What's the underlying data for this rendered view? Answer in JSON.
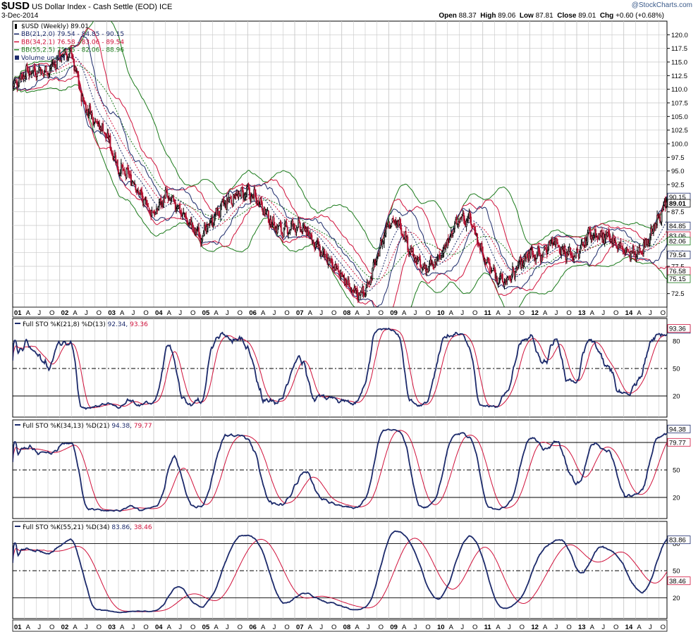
{
  "header": {
    "symbol": "$USD",
    "name": "US Dollar Index - Cash Settle (EOD)",
    "exchange": "ICE",
    "date": "3-Dec-2014",
    "brand": "@StockCharts.com",
    "quote": {
      "open_label": "Open",
      "open": "88.37",
      "high_label": "High",
      "high": "89.06",
      "low_label": "Low",
      "low": "87.81",
      "close_label": "Close",
      "close": "89.01",
      "chg_label": "Chg",
      "chg": "+0.60 (+0.68%)"
    }
  },
  "colors": {
    "background": "#ffffff",
    "grid": "#c8c8c8",
    "navy": "#1c2a6b",
    "red": "#d0103a",
    "green": "#1a7a1a",
    "candle_up": "#000000",
    "candle_down": "#b01030",
    "tag_bg": "#ffffff"
  },
  "chart_data": [
    {
      "type": "candlestick",
      "panel": "price",
      "legend": [
        {
          "text": "$USD (Weekly) 89.01",
          "color": "#000000"
        },
        {
          "text": "BB(21,2.0) 79.54 - 84.85 - 90.15",
          "color": "#1c2a6b"
        },
        {
          "text": "BB(34,2.1) 76.58 - 83.06 - 89.54",
          "color": "#d0103a"
        },
        {
          "text": "BB(55,2.5) 75.15 - 82.06 - 88.96",
          "color": "#1a7a1a"
        },
        {
          "text": "Volume undef",
          "color": "#1c2a6b"
        }
      ],
      "ylim": [
        70,
        122.5
      ],
      "y_ticks": [
        72.5,
        75.0,
        77.5,
        80.0,
        82.5,
        85.0,
        87.5,
        90.0,
        92.5,
        95.0,
        97.5,
        100.0,
        102.5,
        105.0,
        107.5,
        110.0,
        112.5,
        115.0,
        117.5,
        120.0
      ],
      "y_tick_labels": [
        "72.5",
        "75.0",
        "77.5",
        "80.0",
        "82.5",
        "85.0",
        "87.5",
        "90.0",
        "92.5",
        "95.0",
        "97.5",
        "100.0",
        "102.5",
        "105.0",
        "107.5",
        "110.0",
        "112.5",
        "115.0",
        "117.5",
        "120.0"
      ],
      "value_tags": [
        {
          "value": 90.15,
          "label": "90.15",
          "color": "#1c2a6b"
        },
        {
          "value": 89.01,
          "label": "89.01",
          "color": "#000000",
          "bold": true
        },
        {
          "value": 84.85,
          "label": "84.85",
          "color": "#1c2a6b"
        },
        {
          "value": 83.06,
          "label": "83.06",
          "color": "#d0103a"
        },
        {
          "value": 82.06,
          "label": "82.06",
          "color": "#1a7a1a"
        },
        {
          "value": 79.54,
          "label": "79.54",
          "color": "#1c2a6b"
        },
        {
          "value": 76.58,
          "label": "76.58",
          "color": "#d0103a"
        },
        {
          "value": 75.15,
          "label": "75.15",
          "color": "#1a7a1a"
        }
      ],
      "close_path": {
        "x": [
          2001.0,
          2001.25,
          2001.5,
          2001.75,
          2002.0,
          2002.25,
          2002.5,
          2002.75,
          2003.0,
          2003.25,
          2003.5,
          2003.75,
          2004.0,
          2004.25,
          2004.5,
          2004.75,
          2005.0,
          2005.25,
          2005.5,
          2005.75,
          2006.0,
          2006.25,
          2006.5,
          2006.75,
          2007.0,
          2007.25,
          2007.5,
          2007.75,
          2008.0,
          2008.25,
          2008.5,
          2008.75,
          2009.0,
          2009.25,
          2009.5,
          2009.75,
          2010.0,
          2010.25,
          2010.5,
          2010.75,
          2011.0,
          2011.25,
          2011.5,
          2011.75,
          2012.0,
          2012.25,
          2012.5,
          2012.75,
          2013.0,
          2013.25,
          2013.5,
          2013.75,
          2014.0,
          2014.25,
          2014.5,
          2014.75,
          2014.92
        ],
        "close": [
          110.5,
          113.0,
          113.5,
          113.2,
          116.0,
          116.5,
          107.5,
          104.5,
          101.5,
          95.5,
          94.0,
          90.0,
          87.0,
          90.5,
          88.5,
          85.5,
          83.0,
          86.0,
          89.0,
          90.5,
          91.0,
          89.5,
          85.5,
          84.0,
          85.0,
          84.0,
          81.0,
          78.0,
          76.0,
          72.5,
          72.8,
          79.0,
          86.0,
          85.0,
          79.5,
          77.0,
          78.0,
          82.0,
          86.5,
          86.0,
          79.5,
          76.0,
          74.5,
          77.5,
          80.0,
          79.5,
          82.5,
          80.0,
          79.5,
          83.5,
          83.0,
          82.5,
          80.5,
          79.5,
          82.0,
          86.5,
          89.01
        ]
      }
    },
    {
      "type": "line",
      "panel": "stoch",
      "legend_prefix": "Full STO %K(21,8) %D(13)",
      "k_label": "92.34",
      "d_label": "93.36",
      "ylim": [
        0,
        100
      ],
      "lines": [
        20,
        50,
        80
      ],
      "line_labels": [
        "20",
        "50",
        "80"
      ],
      "k_period": 21,
      "k_smooth": 8,
      "d_period": 13
    },
    {
      "type": "line",
      "panel": "stoch",
      "legend_prefix": "Full STO %K(34,13) %D(21)",
      "k_label": "94.38",
      "d_label": "79.77",
      "ylim": [
        0,
        100
      ],
      "lines": [
        20,
        50,
        80
      ],
      "line_labels": [
        "20",
        "50",
        "80"
      ],
      "k_period": 34,
      "k_smooth": 13,
      "d_period": 21
    },
    {
      "type": "line",
      "panel": "stoch",
      "legend_prefix": "Full STO %K(55,21) %D(34)",
      "k_label": "83.86",
      "d_label": "38.46",
      "ylim": [
        0,
        100
      ],
      "lines": [
        20,
        50,
        80
      ],
      "line_labels": [
        "20",
        "50",
        "80"
      ],
      "k_period": 55,
      "k_smooth": 21,
      "d_period": 34
    }
  ],
  "x_axis": {
    "start": 2001.0,
    "end": 2014.92,
    "months": [
      "A",
      "J",
      "O"
    ],
    "years": [
      "01",
      "02",
      "03",
      "04",
      "05",
      "06",
      "07",
      "08",
      "09",
      "10",
      "11",
      "12",
      "13",
      "14"
    ]
  }
}
